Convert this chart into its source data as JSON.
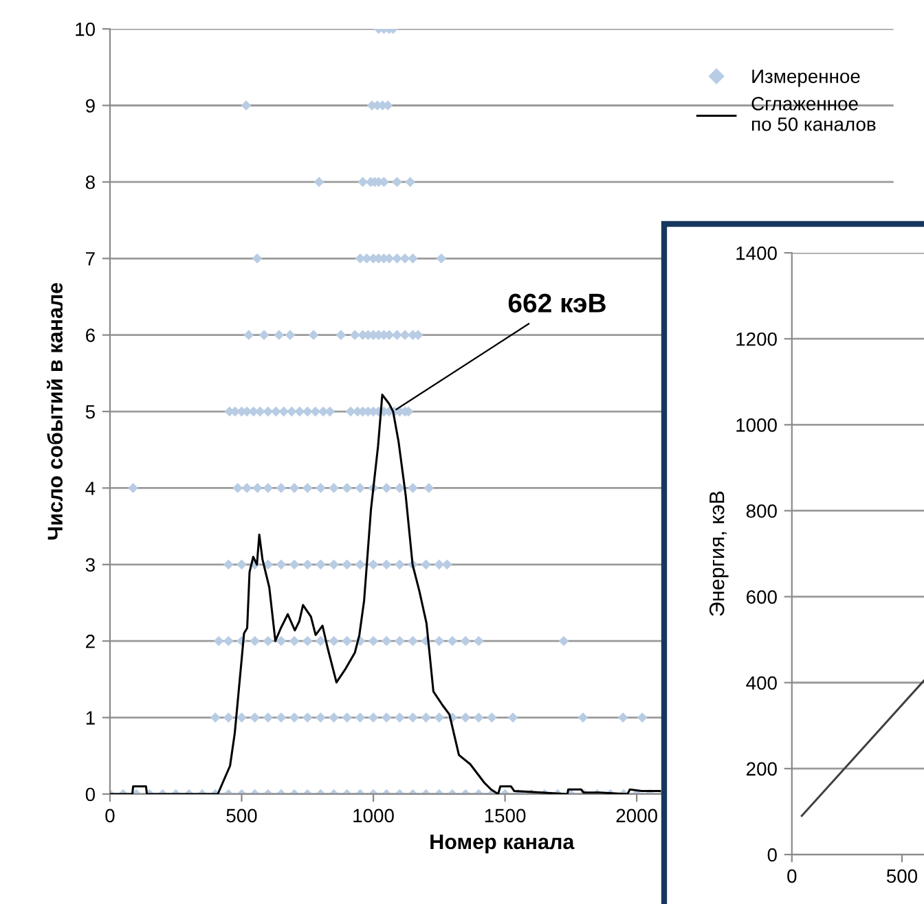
{
  "chart_data": [
    {
      "type": "scatter",
      "xlabel": "Номер канала",
      "ylabel": "Число событий в канале",
      "xlim": [
        0,
        2975
      ],
      "xticks": [
        0,
        500,
        1000,
        1500,
        2000
      ],
      "ylim": [
        0,
        10
      ],
      "yticks": [
        0,
        1,
        2,
        3,
        4,
        5,
        6,
        7,
        8,
        9,
        10
      ],
      "grid": "y",
      "legend": "top right",
      "annotations": [
        {
          "text": "662 кэВ",
          "x": 1075,
          "y": 5.0
        }
      ],
      "series": [
        {
          "name": "Измеренное",
          "marker": "diamond",
          "color": "#b8cce4",
          "x": [
            0,
            50,
            100,
            150,
            200,
            250,
            300,
            350,
            400,
            450,
            500,
            550,
            600,
            650,
            700,
            750,
            800,
            850,
            900,
            950,
            1000,
            1050,
            1100,
            1150,
            1200,
            1250,
            1300,
            1350,
            1400,
            1450,
            1500,
            1550,
            1600,
            1650,
            1700,
            1750,
            1800,
            1850,
            1900,
            1950,
            2000,
            2050,
            2100,
            400,
            450,
            500,
            550,
            600,
            650,
            700,
            750,
            800,
            850,
            900,
            950,
            1000,
            1050,
            1100,
            1150,
            1200,
            1250,
            1300,
            1350,
            1400,
            1450,
            1530,
            1796,
            1948,
            2021,
            413,
            450,
            500,
            550,
            600,
            650,
            700,
            750,
            800,
            850,
            900,
            950,
            1000,
            1050,
            1100,
            1150,
            1200,
            1250,
            1300,
            1350,
            1400,
            1723,
            450,
            500,
            550,
            600,
            650,
            700,
            750,
            800,
            850,
            900,
            950,
            1000,
            1050,
            1100,
            1150,
            1200,
            1250,
            1280,
            88,
            485,
            520,
            560,
            600,
            650,
            700,
            750,
            800,
            850,
            900,
            950,
            1000,
            1050,
            1100,
            1150,
            1211,
            454,
            475,
            500,
            520,
            545,
            570,
            600,
            630,
            660,
            690,
            720,
            750,
            780,
            810,
            835,
            914,
            940,
            960,
            980,
            1000,
            1020,
            1040,
            1060,
            1080,
            1100,
            1120,
            1133,
            527,
            585,
            642,
            684,
            773,
            877,
            930,
            960,
            980,
            1000,
            1020,
            1040,
            1060,
            1090,
            1120,
            1150,
            1170,
            559,
            950,
            975,
            1000,
            1020,
            1040,
            1060,
            1090,
            1120,
            1150,
            1258,
            794,
            960,
            990,
            1005,
            1020,
            1040,
            1090,
            1140,
            517,
            995,
            1015,
            1035,
            1055,
            1020,
            1040,
            1060,
            1075
          ],
          "values": [
            0,
            0,
            0,
            0,
            0,
            0,
            0,
            0,
            0,
            0,
            0,
            0,
            0,
            0,
            0,
            0,
            0,
            0,
            0,
            0,
            0,
            0,
            0,
            0,
            0,
            0,
            0,
            0,
            0,
            0,
            0,
            0,
            0,
            0,
            0,
            0,
            0,
            0,
            0,
            0,
            0,
            0,
            0,
            1,
            1,
            1,
            1,
            1,
            1,
            1,
            1,
            1,
            1,
            1,
            1,
            1,
            1,
            1,
            1,
            1,
            1,
            1,
            1,
            1,
            1,
            1,
            1,
            1,
            1,
            2,
            2,
            2,
            2,
            2,
            2,
            2,
            2,
            2,
            2,
            2,
            2,
            2,
            2,
            2,
            2,
            2,
            2,
            2,
            2,
            2,
            2,
            3,
            3,
            3,
            3,
            3,
            3,
            3,
            3,
            3,
            3,
            3,
            3,
            3,
            3,
            3,
            3,
            3,
            3,
            4,
            4,
            4,
            4,
            4,
            4,
            4,
            4,
            4,
            4,
            4,
            4,
            4,
            4,
            4,
            4,
            4,
            5,
            5,
            5,
            5,
            5,
            5,
            5,
            5,
            5,
            5,
            5,
            5,
            5,
            5,
            5,
            5,
            5,
            5,
            5,
            5,
            5,
            5,
            5,
            5,
            5,
            5,
            5,
            6,
            6,
            6,
            6,
            6,
            6,
            6,
            6,
            6,
            6,
            6,
            6,
            6,
            6,
            6,
            6,
            6,
            7,
            7,
            7,
            7,
            7,
            7,
            7,
            7,
            7,
            7,
            7,
            8,
            8,
            8,
            8,
            8,
            8,
            8,
            8,
            9,
            9,
            9,
            9,
            9,
            10,
            10,
            10,
            10
          ]
        },
        {
          "name": "Сглаженное\nпо 50 каналов",
          "type": "line",
          "marker": "none",
          "line_style": "solid",
          "color": "#000000",
          "x": [
            0,
            85,
            88,
            137,
            140,
            410,
            412,
            456,
            474,
            500,
            509,
            521,
            530,
            544,
            558,
            567,
            579,
            605,
            628,
            649,
            675,
            702,
            719,
            733,
            763,
            781,
            807,
            825,
            860,
            895,
            930,
            947,
            965,
            991,
            1018,
            1034,
            1060,
            1075,
            1096,
            1123,
            1149,
            1175,
            1202,
            1228,
            1263,
            1289,
            1325,
            1368,
            1421,
            1447,
            1474,
            1482,
            1523,
            1535,
            1588,
            1737,
            1740,
            1789,
            1798,
            1860,
            1965,
            1974,
            2018,
            2088
          ],
          "values": [
            0,
            0,
            0.1,
            0.1,
            0,
            0,
            0.02,
            0.37,
            0.8,
            1.76,
            2.1,
            2.17,
            2.9,
            3.1,
            3.0,
            3.39,
            3.07,
            2.7,
            2.0,
            2.17,
            2.35,
            2.14,
            2.26,
            2.47,
            2.32,
            2.08,
            2.2,
            1.93,
            1.46,
            1.64,
            1.85,
            2.08,
            2.53,
            3.72,
            4.55,
            5.22,
            5.1,
            5.0,
            4.6,
            3.9,
            3.0,
            2.65,
            2.23,
            1.34,
            1.16,
            1.04,
            0.51,
            0.39,
            0.15,
            0.06,
            0,
            0.1,
            0.1,
            0.04,
            0.03,
            0,
            0.06,
            0.06,
            0.02,
            0.02,
            0,
            0.06,
            0.04,
            0.04
          ]
        }
      ]
    },
    {
      "type": "line",
      "ylabel": "Энергия, кэВ",
      "xlim": [
        0,
        600
      ],
      "xticks": [
        0,
        500
      ],
      "ylim": [
        0,
        1400
      ],
      "yticks": [
        0,
        200,
        400,
        600,
        800,
        1000,
        1200,
        1400
      ],
      "grid": "y",
      "series": [
        {
          "marker": "none",
          "line_style": "solid",
          "color": "#404040",
          "x": [
            45,
            600
          ],
          "values": [
            90,
            405
          ]
        }
      ]
    }
  ]
}
